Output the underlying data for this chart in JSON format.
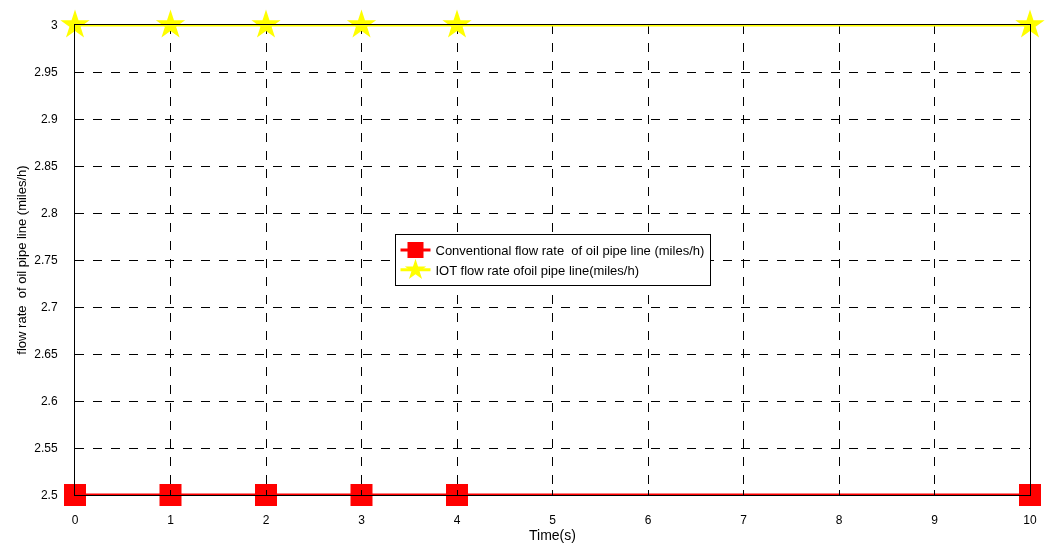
{
  "chart_data": {
    "type": "line",
    "xlabel": "Time(s)",
    "ylabel": "flow rate  of oil pipe line (miles/h)",
    "x": [
      0,
      1,
      2,
      3,
      4,
      10
    ],
    "series": [
      {
        "name": "Conventional flow rate  of oil pipe line (miles/h)",
        "color": "#ff0000",
        "marker": "square",
        "values": [
          2.5,
          2.5,
          2.5,
          2.5,
          2.5,
          2.5
        ]
      },
      {
        "name": "IOT flow rate ofoil pipe line(miles/h)",
        "color": "#ffff00",
        "marker": "star",
        "values": [
          3,
          3,
          3,
          3,
          3,
          3
        ]
      }
    ],
    "xlim": [
      0,
      10
    ],
    "xticks": [
      0,
      1,
      2,
      3,
      4,
      5,
      6,
      7,
      8,
      9,
      10
    ],
    "ylim": [
      2.5,
      3
    ],
    "yticks": [
      2.5,
      2.55,
      2.6,
      2.65,
      2.7,
      2.75,
      2.8,
      2.85,
      2.9,
      2.95,
      3
    ],
    "grid": true,
    "legend": "center",
    "line_style": "solid"
  }
}
